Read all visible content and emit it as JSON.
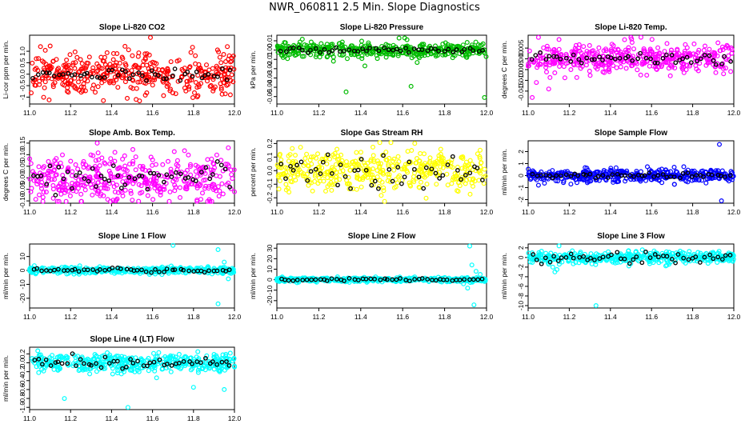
{
  "title": "NWR_060811  2.5 Min. Slope Diagnostics",
  "chart_data": [
    {
      "type": "scatter",
      "title": "Slope Li-820 CO2",
      "ylabel": "Li-cor ppm per min.",
      "xlim": [
        11.0,
        12.0
      ],
      "x_ticks": [
        11.0,
        11.2,
        11.4,
        11.6,
        11.8,
        12.0
      ],
      "ylim": [
        -1.3,
        1.7
      ],
      "y_ticks": [
        -1,
        -0.5,
        0,
        0.5,
        1
      ],
      "y_tick_labels": [
        "-1",
        "-0.5",
        "0.0",
        "0.5",
        "1.0"
      ],
      "color": "#ff0000",
      "series": [
        {
          "name": "slopes",
          "spread": 0.45,
          "outliers": [
            [
              11.59,
              1.6
            ],
            [
              11.36,
              -1.15
            ],
            [
              11.52,
              -1.1
            ],
            [
              11.98,
              -0.9
            ]
          ]
        },
        {
          "name": "averages",
          "spread": 0.15
        }
      ]
    },
    {
      "type": "scatter",
      "title": "Slope Li-820 Pressure",
      "ylabel": "kPa per min.",
      "xlim": [
        11.0,
        12.0
      ],
      "x_ticks": [
        11.0,
        11.2,
        11.4,
        11.6,
        11.8,
        12.0
      ],
      "ylim": [
        -0.058,
        0.016
      ],
      "y_ticks": [
        -0.05,
        -0.04,
        -0.03,
        -0.02,
        -0.01,
        0.0,
        0.01
      ],
      "y_tick_labels": [
        "-0.05",
        "-0.04",
        "-0.03",
        "-0.02",
        "-0.01",
        "0.00",
        "0.01"
      ],
      "color": "#00bb00",
      "series": [
        {
          "name": "slopes",
          "spread": 0.004,
          "outliers": [
            [
              11.33,
              -0.045
            ],
            [
              11.64,
              -0.039
            ],
            [
              11.99,
              -0.051
            ],
            [
              11.42,
              -0.017
            ],
            [
              11.27,
              -0.012
            ],
            [
              11.03,
              -0.008
            ],
            [
              11.61,
              0.013
            ]
          ]
        },
        {
          "name": "averages",
          "spread": 0.0015
        }
      ]
    },
    {
      "type": "scatter",
      "title": "Slope Li-820 Temp.",
      "ylabel": "degrees C per min.",
      "xlim": [
        11.0,
        12.0
      ],
      "x_ticks": [
        11.0,
        11.2,
        11.4,
        11.6,
        11.8,
        12.0
      ],
      "ylim": [
        -0.021,
        0.011
      ],
      "y_ticks": [
        -0.015,
        -0.01,
        -0.005,
        0.0,
        0.005
      ],
      "y_tick_labels": [
        "-0.015",
        "-0.010",
        "-0.005",
        "0.000",
        "0.005"
      ],
      "color": "#ff00ff",
      "series": [
        {
          "name": "slopes",
          "spread": 0.0035,
          "outliers": [
            [
              11.02,
              -0.018
            ],
            [
              11.1,
              -0.014
            ],
            [
              11.05,
              0.01
            ],
            [
              11.15,
              0.009
            ],
            [
              11.04,
              -0.011
            ]
          ]
        },
        {
          "name": "averages",
          "spread": 0.0015
        }
      ]
    },
    {
      "type": "scatter",
      "title": "Slope Amb. Box Temp.",
      "ylabel": "degrees C per min.",
      "xlim": [
        11.0,
        12.0
      ],
      "x_ticks": [
        11.0,
        11.2,
        11.4,
        11.6,
        11.8,
        12.0
      ],
      "ylim": [
        -0.11,
        0.16
      ],
      "y_ticks": [
        -0.1,
        -0.05,
        0.0,
        0.05,
        0.1,
        0.15
      ],
      "y_tick_labels": [
        "-0.10",
        "-0.05",
        "0.00",
        "0.05",
        "0.10",
        "0.15"
      ],
      "color": "#ff00ff",
      "series": [
        {
          "name": "slopes",
          "spread": 0.05,
          "outliers": [
            [
              11.33,
              0.15
            ],
            [
              11.42,
              -0.1
            ],
            [
              11.97,
              0.13
            ]
          ]
        },
        {
          "name": "averages",
          "spread": 0.03
        }
      ]
    },
    {
      "type": "scatter",
      "title": "Slope Gas Stream RH",
      "ylabel": "percent per min.",
      "xlim": [
        11.0,
        12.0
      ],
      "x_ticks": [
        11.0,
        11.2,
        11.4,
        11.6,
        11.8,
        12.0
      ],
      "ylim": [
        -0.24,
        0.22
      ],
      "y_ticks": [
        -0.2,
        -0.1,
        0.0,
        0.1,
        0.2
      ],
      "y_tick_labels": [
        "-0.2",
        "-0.1",
        "0.0",
        "0.1",
        "0.2"
      ],
      "color": "#ffff00",
      "series": [
        {
          "name": "slopes",
          "spread": 0.08,
          "outliers": []
        },
        {
          "name": "averages",
          "spread": 0.07
        }
      ]
    },
    {
      "type": "scatter",
      "title": "Slope Sample Flow",
      "ylabel": "ml/min per min.",
      "xlim": [
        11.0,
        12.0
      ],
      "x_ticks": [
        11.0,
        11.2,
        11.4,
        11.6,
        11.8,
        12.0
      ],
      "ylim": [
        -2.3,
        2.9
      ],
      "y_ticks": [
        -2,
        -1,
        0,
        1,
        2
      ],
      "y_tick_labels": [
        "-2",
        "-1",
        "0",
        "1",
        "2"
      ],
      "color": "#0000ff",
      "series": [
        {
          "name": "slopes",
          "spread": 0.25,
          "outliers": [
            [
              11.93,
              2.6
            ],
            [
              11.94,
              -2.1
            ],
            [
              11.05,
              -0.8
            ],
            [
              11.71,
              0.7
            ]
          ]
        },
        {
          "name": "averages",
          "spread": 0.12
        }
      ]
    },
    {
      "type": "scatter",
      "title": "Slope Line 1 Flow",
      "ylabel": "ml/min per min.",
      "xlim": [
        11.0,
        12.0
      ],
      "x_ticks": [
        11.0,
        11.2,
        11.4,
        11.6,
        11.8,
        12.0
      ],
      "ylim": [
        -27,
        19
      ],
      "y_ticks": [
        -20,
        -10,
        0,
        10
      ],
      "y_tick_labels": [
        "-20",
        "-10",
        "0",
        "10"
      ],
      "color": "#00ffff",
      "series": [
        {
          "name": "slopes",
          "spread": 1.2,
          "outliers": [
            [
              11.7,
              18
            ],
            [
              11.92,
              -24
            ],
            [
              11.92,
              15
            ],
            [
              11.95,
              6
            ],
            [
              11.97,
              -6
            ],
            [
              11.94,
              -2
            ]
          ]
        },
        {
          "name": "averages",
          "spread": 0.7
        }
      ]
    },
    {
      "type": "scatter",
      "title": "Slope Line 2 Flow",
      "ylabel": "ml/min per min.",
      "xlim": [
        11.0,
        12.0
      ],
      "x_ticks": [
        11.0,
        11.2,
        11.4,
        11.6,
        11.8,
        12.0
      ],
      "ylim": [
        -27,
        34
      ],
      "y_ticks": [
        -20,
        -10,
        0,
        10,
        20,
        30
      ],
      "y_tick_labels": [
        "-20",
        "-10",
        "0",
        "10",
        "20",
        "30"
      ],
      "color": "#00ffff",
      "series": [
        {
          "name": "slopes",
          "spread": 1.0,
          "outliers": [
            [
              11.92,
              32
            ],
            [
              11.94,
              -24
            ],
            [
              11.93,
              14
            ],
            [
              11.95,
              8
            ],
            [
              11.97,
              5
            ],
            [
              11.91,
              -8
            ],
            [
              11.89,
              -4
            ]
          ]
        },
        {
          "name": "averages",
          "spread": 0.6
        }
      ]
    },
    {
      "type": "scatter",
      "title": "Slope Line 3 Flow",
      "ylabel": "ml/min per min.",
      "xlim": [
        11.0,
        12.0
      ],
      "x_ticks": [
        11.0,
        11.2,
        11.4,
        11.6,
        11.8,
        12.0
      ],
      "ylim": [
        -10.5,
        2.8
      ],
      "y_ticks": [
        -10,
        -8,
        -6,
        -4,
        -2,
        0,
        2
      ],
      "y_tick_labels": [
        "-10",
        "-8",
        "-6",
        "-4",
        "-2",
        "0",
        "2"
      ],
      "color": "#00ffff",
      "series": [
        {
          "name": "slopes",
          "spread": 0.6,
          "outliers": [
            [
              11.33,
              -10.0
            ],
            [
              11.13,
              -3.0
            ],
            [
              11.14,
              -2.5
            ],
            [
              11.12,
              -2.0
            ],
            [
              11.1,
              -1.4
            ],
            [
              11.15,
              2.4
            ]
          ]
        },
        {
          "name": "averages",
          "spread": 0.6
        }
      ]
    },
    {
      "type": "scatter",
      "title": "Slope Line 4 (LT) Flow",
      "ylabel": "ml/min per min.",
      "xlim": [
        11.0,
        12.0
      ],
      "x_ticks": [
        11.0,
        11.2,
        11.4,
        11.6,
        11.8,
        12.0
      ],
      "ylim": [
        -1.05,
        0.35
      ],
      "y_ticks": [
        -1.0,
        -0.8,
        -0.6,
        -0.4,
        -0.2,
        0.0,
        0.2
      ],
      "y_tick_labels": [
        "-1.0",
        "-0.8",
        "-0.6",
        "-0.4",
        "-0.2",
        "0.0",
        "0.2"
      ],
      "color": "#00ffff",
      "series": [
        {
          "name": "slopes",
          "spread": 0.1,
          "outliers": [
            [
              11.48,
              -1.0
            ],
            [
              11.17,
              -0.8
            ],
            [
              11.95,
              -0.6
            ],
            [
              11.04,
              0.27
            ],
            [
              11.8,
              -0.55
            ]
          ]
        },
        {
          "name": "averages",
          "spread": 0.07
        }
      ]
    }
  ]
}
